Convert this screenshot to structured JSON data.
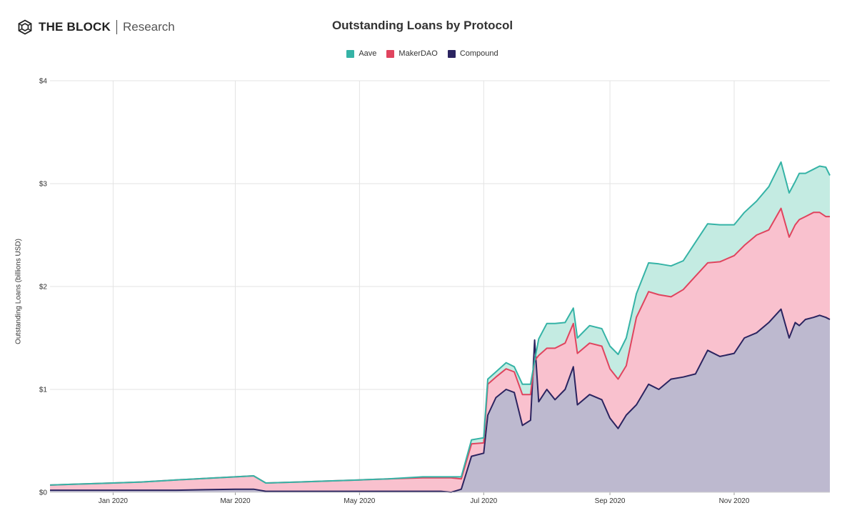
{
  "header": {
    "brand_name": "THE BLOCK",
    "brand_sub": "Research",
    "brand_icon": "cube-logo-icon"
  },
  "chart_data": {
    "type": "area",
    "stacked": true,
    "title": "Outstanding Loans by Protocol",
    "xlabel": "",
    "ylabel": "Outstanding Loans (billions USD)",
    "x_range": [
      "2019-12-01",
      "2020-12-18"
    ],
    "y_range": [
      0,
      4
    ],
    "y_ticks": [
      0,
      1,
      2,
      3,
      4
    ],
    "y_tick_labels": [
      "$0",
      "$1",
      "$2",
      "$3",
      "$4"
    ],
    "x_ticks": [
      "2020-01-01",
      "2020-03-01",
      "2020-05-01",
      "2020-07-01",
      "2020-09-01",
      "2020-11-01"
    ],
    "x_tick_labels": [
      "Jan 2020",
      "Mar 2020",
      "May 2020",
      "Jul 2020",
      "Sep 2020",
      "Nov 2020"
    ],
    "grid": true,
    "legend_position": "top-center",
    "dates": [
      "2019-12-01",
      "2019-12-15",
      "2020-01-01",
      "2020-01-15",
      "2020-02-01",
      "2020-02-15",
      "2020-03-01",
      "2020-03-10",
      "2020-03-16",
      "2020-04-01",
      "2020-04-15",
      "2020-05-01",
      "2020-05-15",
      "2020-06-01",
      "2020-06-10",
      "2020-06-15",
      "2020-06-20",
      "2020-06-25",
      "2020-07-01",
      "2020-07-03",
      "2020-07-07",
      "2020-07-12",
      "2020-07-16",
      "2020-07-20",
      "2020-07-24",
      "2020-07-26",
      "2020-07-28",
      "2020-08-01",
      "2020-08-05",
      "2020-08-10",
      "2020-08-14",
      "2020-08-16",
      "2020-08-22",
      "2020-08-28",
      "2020-09-01",
      "2020-09-05",
      "2020-09-09",
      "2020-09-14",
      "2020-09-20",
      "2020-09-25",
      "2020-10-01",
      "2020-10-07",
      "2020-10-13",
      "2020-10-19",
      "2020-10-25",
      "2020-11-01",
      "2020-11-06",
      "2020-11-12",
      "2020-11-18",
      "2020-11-24",
      "2020-11-28",
      "2020-12-01",
      "2020-12-03",
      "2020-12-06",
      "2020-12-10",
      "2020-12-13",
      "2020-12-16",
      "2020-12-18"
    ],
    "series": [
      {
        "name": "Compound",
        "color": "#2b2460",
        "fill": "#bdb9cf",
        "values": [
          0.02,
          0.02,
          0.02,
          0.02,
          0.02,
          0.025,
          0.03,
          0.03,
          0.01,
          0.01,
          0.01,
          0.01,
          0.01,
          0.01,
          0.01,
          0.0,
          0.03,
          0.35,
          0.38,
          0.75,
          0.92,
          1.0,
          0.97,
          0.65,
          0.7,
          1.48,
          0.88,
          1.0,
          0.9,
          1.0,
          1.22,
          0.85,
          0.95,
          0.9,
          0.72,
          0.62,
          0.75,
          0.85,
          1.05,
          1.0,
          1.1,
          1.12,
          1.15,
          1.38,
          1.32,
          1.35,
          1.5,
          1.55,
          1.65,
          1.78,
          1.5,
          1.65,
          1.62,
          1.68,
          1.7,
          1.72,
          1.7,
          1.68
        ]
      },
      {
        "name": "MakerDAO",
        "color": "#e0445e",
        "fill": "#f9c1ce",
        "values": [
          0.05,
          0.06,
          0.07,
          0.08,
          0.1,
          0.11,
          0.12,
          0.13,
          0.08,
          0.09,
          0.1,
          0.11,
          0.12,
          0.13,
          0.13,
          0.14,
          0.1,
          0.12,
          0.1,
          0.3,
          0.2,
          0.2,
          0.2,
          0.3,
          0.25,
          -0.2,
          0.45,
          0.4,
          0.5,
          0.45,
          0.42,
          0.5,
          0.5,
          0.52,
          0.48,
          0.48,
          0.48,
          0.85,
          0.9,
          0.92,
          0.8,
          0.85,
          0.95,
          0.85,
          0.92,
          0.95,
          0.9,
          0.95,
          0.9,
          0.98,
          0.98,
          0.95,
          1.03,
          1.0,
          1.02,
          1.0,
          0.98,
          1.0
        ]
      },
      {
        "name": "Aave",
        "color": "#35b3a6",
        "fill": "#c4ebe2",
        "values": [
          0.0,
          0.0,
          0.0,
          0.0,
          0.0,
          0.0,
          0.0,
          0.0,
          0.0,
          0.0,
          0.0,
          0.0,
          0.0,
          0.01,
          0.01,
          0.01,
          0.02,
          0.04,
          0.05,
          0.05,
          0.05,
          0.06,
          0.05,
          0.1,
          0.1,
          0.0,
          0.16,
          0.24,
          0.24,
          0.2,
          0.15,
          0.15,
          0.17,
          0.17,
          0.22,
          0.24,
          0.27,
          0.23,
          0.28,
          0.3,
          0.3,
          0.28,
          0.33,
          0.38,
          0.36,
          0.3,
          0.32,
          0.33,
          0.42,
          0.45,
          0.43,
          0.42,
          0.45,
          0.42,
          0.42,
          0.45,
          0.48,
          0.4
        ]
      }
    ]
  }
}
